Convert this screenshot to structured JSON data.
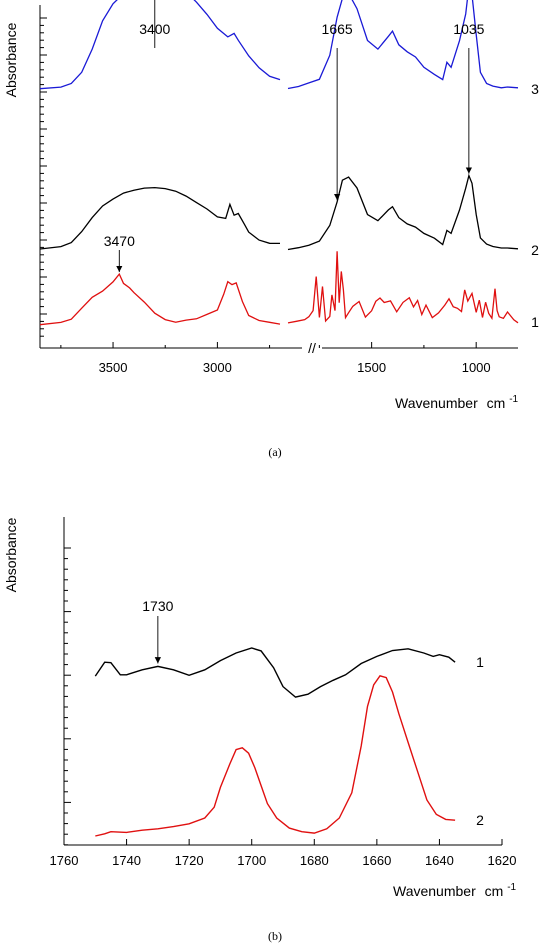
{
  "chart_data": [
    {
      "id": "a",
      "type": "line",
      "panel_label": "(a)",
      "ylabel": "Absorbance",
      "xlabel": "Wavenumber",
      "xunit_base": "cm",
      "xunit_exp": "-1",
      "axis_break": "//",
      "x_reversed": true,
      "grid": false,
      "xticks_left": [
        3500,
        3000
      ],
      "xticks_right": [
        1500,
        1000
      ],
      "xrange_left": [
        3850,
        2700
      ],
      "xrange_right": [
        1900,
        800
      ],
      "annotations": [
        {
          "text": "3400",
          "x": 3300,
          "series": "3"
        },
        {
          "text": "1665",
          "x": 1665,
          "series": "2"
        },
        {
          "text": "1035",
          "x": 1035,
          "series": "2"
        },
        {
          "text": "3470",
          "x": 3470,
          "series": "1"
        }
      ],
      "series": [
        {
          "name": "3",
          "color": "#1a1ad6",
          "left": {
            "x": [
              3850,
              3750,
              3700,
              3650,
              3600,
              3550,
              3500,
              3450,
              3400,
              3350,
              3300,
              3250,
              3200,
              3150,
              3100,
              3050,
              3000,
              2950,
              2920,
              2900,
              2850,
              2800,
              2750,
              2700
            ],
            "y": [
              1.0,
              1.01,
              1.05,
              1.18,
              1.45,
              1.78,
              1.98,
              2.1,
              2.2,
              2.28,
              2.3,
              2.27,
              2.22,
              2.14,
              2.02,
              1.88,
              1.72,
              1.62,
              1.66,
              1.58,
              1.4,
              1.26,
              1.16,
              1.12
            ]
          },
          "right": {
            "x": [
              1900,
              1850,
              1800,
              1750,
              1700,
              1665,
              1640,
              1610,
              1570,
              1520,
              1470,
              1420,
              1400,
              1370,
              1330,
              1290,
              1250,
              1200,
              1160,
              1140,
              1120,
              1080,
              1050,
              1035,
              1020,
              1000,
              980,
              950,
              920,
              880,
              850,
              800
            ],
            "y": [
              1.0,
              1.02,
              1.06,
              1.1,
              1.38,
              1.82,
              2.04,
              2.1,
              1.92,
              1.55,
              1.45,
              1.6,
              1.66,
              1.5,
              1.42,
              1.36,
              1.24,
              1.16,
              1.1,
              1.3,
              1.24,
              1.55,
              1.86,
              2.18,
              2.08,
              1.62,
              1.18,
              1.05,
              1.02,
              1.0,
              1.01,
              1.0
            ]
          }
        },
        {
          "name": "2",
          "color": "#000000",
          "left": {
            "x": [
              3850,
              3750,
              3700,
              3650,
              3600,
              3550,
              3500,
              3450,
              3400,
              3350,
              3300,
              3250,
              3200,
              3150,
              3100,
              3050,
              3000,
              2960,
              2940,
              2920,
              2900,
              2870,
              2850,
              2800,
              2750,
              2700
            ],
            "y": [
              0.01,
              0.03,
              0.08,
              0.22,
              0.4,
              0.55,
              0.64,
              0.72,
              0.76,
              0.79,
              0.8,
              0.79,
              0.76,
              0.7,
              0.62,
              0.54,
              0.44,
              0.42,
              0.6,
              0.46,
              0.48,
              0.34,
              0.24,
              0.14,
              0.1,
              0.1
            ]
          },
          "right": {
            "x": [
              1900,
              1850,
              1800,
              1750,
              1700,
              1665,
              1640,
              1610,
              1570,
              1520,
              1470,
              1420,
              1400,
              1370,
              1330,
              1290,
              1250,
              1200,
              1160,
              1140,
              1120,
              1080,
              1050,
              1035,
              1020,
              1000,
              980,
              950,
              920,
              880,
              850,
              800
            ],
            "y": [
              0.0,
              0.02,
              0.05,
              0.1,
              0.3,
              0.6,
              0.88,
              0.92,
              0.78,
              0.44,
              0.36,
              0.5,
              0.54,
              0.4,
              0.32,
              0.28,
              0.2,
              0.14,
              0.06,
              0.24,
              0.2,
              0.5,
              0.78,
              0.94,
              0.84,
              0.44,
              0.14,
              0.06,
              0.03,
              0.01,
              0.01,
              0.0
            ]
          }
        },
        {
          "name": "1",
          "color": "#e01010",
          "left": {
            "x": [
              3850,
              3750,
              3700,
              3650,
              3600,
              3550,
              3500,
              3470,
              3450,
              3420,
              3400,
              3350,
              3300,
              3250,
              3200,
              3150,
              3100,
              3050,
              3000,
              2970,
              2950,
              2930,
              2910,
              2880,
              2850,
              2800,
              2750,
              2700
            ],
            "y": [
              0.0,
              0.02,
              0.06,
              0.2,
              0.34,
              0.42,
              0.54,
              0.64,
              0.52,
              0.46,
              0.4,
              0.28,
              0.14,
              0.06,
              0.03,
              0.06,
              0.08,
              0.14,
              0.2,
              0.4,
              0.56,
              0.52,
              0.54,
              0.3,
              0.12,
              0.06,
              0.04,
              0.02
            ]
          },
          "right": {
            "x": [
              1900,
              1860,
              1820,
              1800,
              1780,
              1765,
              1750,
              1735,
              1720,
              1700,
              1690,
              1675,
              1665,
              1655,
              1645,
              1635,
              1625,
              1610,
              1590,
              1560,
              1530,
              1500,
              1480,
              1460,
              1440,
              1410,
              1380,
              1350,
              1320,
              1300,
              1280,
              1260,
              1240,
              1210,
              1180,
              1150,
              1130,
              1110,
              1090,
              1070,
              1055,
              1040,
              1020,
              1000,
              985,
              970,
              955,
              940,
              925,
              910,
              900,
              890,
              870,
              850,
              820,
              800
            ],
            "y": [
              0.02,
              0.04,
              0.06,
              0.1,
              0.18,
              0.62,
              0.1,
              0.5,
              0.06,
              0.12,
              0.4,
              0.2,
              0.96,
              0.3,
              0.7,
              0.46,
              0.1,
              0.16,
              0.24,
              0.3,
              0.1,
              0.18,
              0.3,
              0.34,
              0.28,
              0.3,
              0.16,
              0.28,
              0.34,
              0.22,
              0.3,
              0.12,
              0.24,
              0.08,
              0.14,
              0.24,
              0.32,
              0.22,
              0.2,
              0.16,
              0.44,
              0.3,
              0.4,
              0.16,
              0.32,
              0.1,
              0.3,
              0.16,
              0.1,
              0.48,
              0.2,
              0.12,
              0.1,
              0.18,
              0.08,
              0.04
            ]
          }
        }
      ]
    },
    {
      "id": "b",
      "type": "line",
      "panel_label": "(b)",
      "ylabel": "Absorbance",
      "xlabel": "Wavenumber",
      "xunit_base": "cm",
      "xunit_exp": "-1",
      "x_reversed": true,
      "grid": false,
      "xlim": [
        1760,
        1620
      ],
      "xticks": [
        1760,
        1740,
        1720,
        1700,
        1680,
        1660,
        1640,
        1620
      ],
      "annotations": [
        {
          "text": "1730",
          "x": 1730,
          "series": "1"
        }
      ],
      "series": [
        {
          "name": "1",
          "color": "#000000",
          "x": [
            1750,
            1747,
            1745,
            1742,
            1740,
            1735,
            1730,
            1725,
            1720,
            1715,
            1710,
            1705,
            1700,
            1697,
            1693,
            1690,
            1686,
            1682,
            1678,
            1674,
            1670,
            1665,
            1660,
            1655,
            1650,
            1645,
            1642,
            1640,
            1637,
            1635
          ],
          "y": [
            2.95,
            3.28,
            3.27,
            2.98,
            2.98,
            3.1,
            3.18,
            3.1,
            2.97,
            3.1,
            3.32,
            3.5,
            3.62,
            3.55,
            3.15,
            2.7,
            2.45,
            2.52,
            2.7,
            2.85,
            2.98,
            3.25,
            3.42,
            3.56,
            3.6,
            3.5,
            3.42,
            3.46,
            3.4,
            3.28
          ]
        },
        {
          "name": "2",
          "color": "#e01010",
          "x": [
            1750,
            1747,
            1745,
            1740,
            1735,
            1730,
            1725,
            1720,
            1715,
            1712,
            1710,
            1707,
            1705,
            1703,
            1701,
            1699,
            1697,
            1695,
            1692,
            1688,
            1684,
            1680,
            1676,
            1672,
            1668,
            1665,
            1663,
            1661,
            1659,
            1657,
            1655,
            1653,
            1650,
            1647,
            1644,
            1641,
            1638,
            1635
          ],
          "y": [
            0.0,
            0.06,
            0.12,
            0.1,
            0.16,
            0.2,
            0.26,
            0.34,
            0.5,
            0.8,
            1.35,
            2.0,
            2.4,
            2.45,
            2.3,
            1.9,
            1.4,
            0.9,
            0.5,
            0.22,
            0.12,
            0.08,
            0.2,
            0.5,
            1.2,
            2.5,
            3.6,
            4.2,
            4.45,
            4.4,
            4.0,
            3.4,
            2.6,
            1.8,
            1.0,
            0.6,
            0.46,
            0.44
          ]
        }
      ]
    }
  ]
}
